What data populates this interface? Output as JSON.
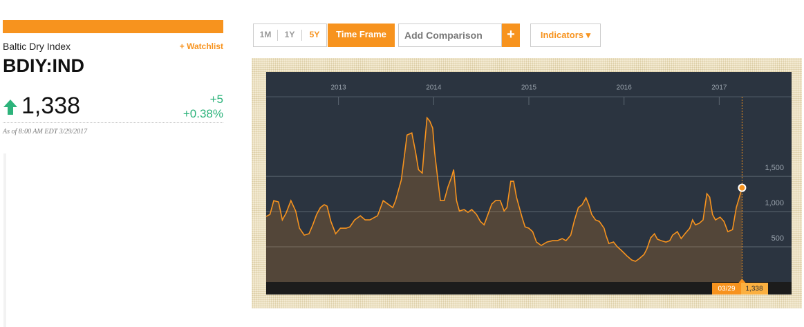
{
  "header": {
    "name": "Baltic Dry Index",
    "watchlist": "+ Watchlist",
    "ticker": "BDIY:IND",
    "price": "1,338",
    "change": "+5",
    "change_pct": "+0.38%",
    "timestamp": "As of 8:00 AM EDT 3/29/2017"
  },
  "toolbar": {
    "ranges": [
      "1M",
      "1Y",
      "5Y"
    ],
    "time_frame": "Time Frame",
    "compare_placeholder": "Add Comparison",
    "add": "+",
    "indicators": "Indicators ▾"
  },
  "chart_data": {
    "type": "line",
    "color": "#f7931e",
    "x": [
      2012.24,
      2012.28,
      2012.32,
      2012.37,
      2012.41,
      2012.45,
      2012.5,
      2012.55,
      2012.59,
      2012.64,
      2012.69,
      2012.73,
      2012.77,
      2012.81,
      2012.85,
      2012.88,
      2012.92,
      2012.97,
      2013.02,
      2013.08,
      2013.12,
      2013.17,
      2013.23,
      2013.28,
      2013.33,
      2013.41,
      2013.47,
      2013.52,
      2013.57,
      2013.6,
      2013.66,
      2013.72,
      2013.77,
      2013.81,
      2013.84,
      2013.88,
      2013.9,
      2013.93,
      2013.96,
      2013.99,
      2014.01,
      2014.04,
      2014.07,
      2014.11,
      2014.15,
      2014.19,
      2014.21,
      2014.24,
      2014.27,
      2014.32,
      2014.36,
      2014.4,
      2014.45,
      2014.49,
      2014.53,
      2014.57,
      2014.61,
      2014.65,
      2014.7,
      2014.74,
      2014.77,
      2014.81,
      2014.84,
      2014.87,
      2014.9,
      2014.93,
      2014.96,
      2015.0,
      2015.04,
      2015.08,
      2015.13,
      2015.19,
      2015.25,
      2015.3,
      2015.35,
      2015.39,
      2015.44,
      2015.48,
      2015.52,
      2015.56,
      2015.6,
      2015.63,
      2015.66,
      2015.7,
      2015.74,
      2015.79,
      2015.81,
      2015.84,
      2015.89,
      2015.93,
      2015.97,
      2016.0,
      2016.03,
      2016.08,
      2016.12,
      2016.16,
      2016.21,
      2016.24,
      2016.28,
      2016.32,
      2016.35,
      2016.39,
      2016.44,
      2016.48,
      2016.51,
      2016.56,
      2016.6,
      2016.64,
      2016.69,
      2016.72,
      2016.75,
      2016.79,
      2016.83,
      2016.87,
      2016.9,
      2016.93,
      2016.96,
      2017.01,
      2017.05,
      2017.09,
      2017.14,
      2017.18,
      2017.21,
      2017.24
    ],
    "values": [
      931,
      960,
      1156,
      1137,
      882,
      980,
      1156,
      1009,
      764,
      666,
      686,
      813,
      960,
      1058,
      1098,
      1078,
      862,
      686,
      764,
      764,
      784,
      882,
      941,
      882,
      882,
      941,
      1156,
      1107,
      1058,
      1156,
      1450,
      2087,
      2117,
      1842,
      1597,
      1548,
      1891,
      2332,
      2283,
      2185,
      1842,
      1499,
      1156,
      1156,
      1352,
      1499,
      1597,
      1156,
      1009,
      1029,
      990,
      1029,
      960,
      862,
      813,
      960,
      1107,
      1156,
      1156,
      1009,
      1058,
      1431,
      1431,
      1205,
      1058,
      911,
      784,
      764,
      715,
      568,
      519,
      568,
      588,
      588,
      617,
      588,
      666,
      882,
      1058,
      1098,
      1196,
      1098,
      960,
      882,
      862,
      764,
      666,
      549,
      568,
      500,
      451,
      412,
      372,
      314,
      294,
      333,
      392,
      470,
      627,
      686,
      608,
      588,
      568,
      588,
      666,
      715,
      617,
      686,
      764,
      882,
      813,
      833,
      882,
      1254,
      1205,
      960,
      882,
      921,
      862,
      715,
      744,
      1058,
      1196,
      1338
    ],
    "xlim": [
      2012.24,
      2017.76
    ],
    "xticks": [
      2013,
      2014,
      2015,
      2016,
      2017
    ],
    "ylim": [
      0,
      2630
    ],
    "yticks": [
      {
        "value": 500,
        "label": "500"
      },
      {
        "value": 1000,
        "label": "1,000"
      },
      {
        "value": 1500,
        "label": "1,500"
      }
    ],
    "grid": true,
    "last_point": {
      "date": "03/29",
      "label": "1,338"
    }
  }
}
